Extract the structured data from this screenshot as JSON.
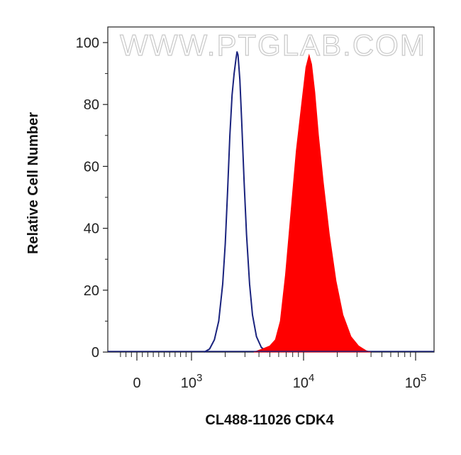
{
  "chart_data": {
    "type": "area",
    "watermark": "WWW.PTGLAB.COM",
    "xlabel": "CL488-11026 CDK4",
    "ylabel": "Relative Cell Number",
    "x_scale": "biexponential (linear near 0, log above 10^3)",
    "xlim": [
      0,
      150000
    ],
    "ylim": [
      0,
      100
    ],
    "y_ticks": [
      "0",
      "20",
      "40",
      "60",
      "80",
      "100"
    ],
    "x_ticks": [
      {
        "label": "0",
        "base": "",
        "exp": ""
      },
      {
        "label": "10",
        "base": "10",
        "exp": "3"
      },
      {
        "label": "10",
        "base": "10",
        "exp": "4"
      },
      {
        "label": "10",
        "base": "10",
        "exp": "5"
      }
    ],
    "grid": false,
    "series": [
      {
        "style": "outline",
        "color": "#1a237e",
        "points": [
          [
            1300,
            0
          ],
          [
            1450,
            1
          ],
          [
            1600,
            4
          ],
          [
            1750,
            10
          ],
          [
            1900,
            22
          ],
          [
            2000,
            35
          ],
          [
            2100,
            52
          ],
          [
            2200,
            70
          ],
          [
            2300,
            83
          ],
          [
            2400,
            90
          ],
          [
            2500,
            95
          ],
          [
            2550,
            97
          ],
          [
            2600,
            96
          ],
          [
            2700,
            88
          ],
          [
            2800,
            75
          ],
          [
            2950,
            55
          ],
          [
            3100,
            38
          ],
          [
            3300,
            22
          ],
          [
            3500,
            12
          ],
          [
            3800,
            5
          ],
          [
            4200,
            1.5
          ],
          [
            4800,
            0
          ]
        ]
      },
      {
        "style": "filled",
        "color": "#ff0000",
        "points": [
          [
            3600,
            0
          ],
          [
            4300,
            1
          ],
          [
            5000,
            2
          ],
          [
            5600,
            4
          ],
          [
            6200,
            10
          ],
          [
            6900,
            25
          ],
          [
            7700,
            45
          ],
          [
            8600,
            65
          ],
          [
            9600,
            80
          ],
          [
            10500,
            92
          ],
          [
            11200,
            96
          ],
          [
            11800,
            93
          ],
          [
            12600,
            84
          ],
          [
            13600,
            70
          ],
          [
            15000,
            55
          ],
          [
            17000,
            38
          ],
          [
            19500,
            23
          ],
          [
            22500,
            12
          ],
          [
            26500,
            5
          ],
          [
            31000,
            2
          ],
          [
            36000,
            0.5
          ],
          [
            40000,
            0
          ]
        ]
      }
    ]
  }
}
